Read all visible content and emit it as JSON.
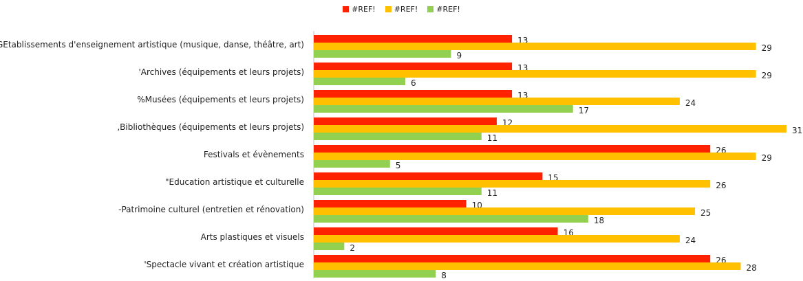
{
  "chart_data": {
    "type": "bar",
    "orientation": "horizontal",
    "legend_position": "top",
    "grid": false,
    "xlim": [
      0,
      31
    ],
    "categories": [
      "GEtablissements d'enseignement artistique (musique, danse, théâtre, art)",
      "'Archives (équipements et leurs projets)",
      "%Musées (équipements et leurs projets)",
      ",Bibliothèques (équipements et leurs projets)",
      "Festivals et évènements",
      "\"Education artistique et culturelle",
      "-Patrimoine culturel (entretien et rénovation)",
      "Arts plastiques et visuels",
      "'Spectacle vivant et création artistique"
    ],
    "series": [
      {
        "name": "#REF!",
        "color": "#ff2200",
        "values": [
          13,
          13,
          13,
          12,
          26,
          15,
          10,
          16,
          26
        ]
      },
      {
        "name": "#REF!",
        "color": "#ffc000",
        "values": [
          29,
          29,
          24,
          31,
          29,
          26,
          25,
          24,
          28
        ]
      },
      {
        "name": "#REF!",
        "color": "#92d050",
        "values": [
          9,
          6,
          17,
          11,
          5,
          11,
          18,
          2,
          8
        ]
      }
    ]
  }
}
